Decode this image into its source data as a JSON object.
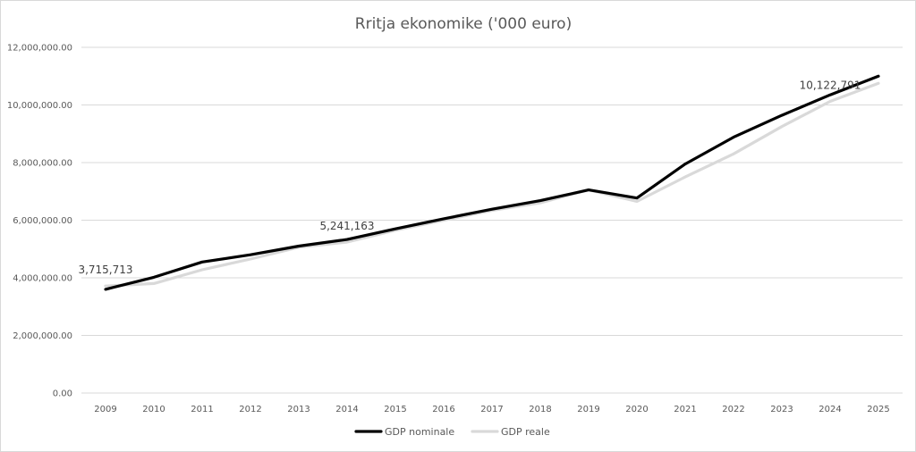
{
  "chart_data": {
    "type": "line",
    "title": "Rritja ekonomike ('000 euro)",
    "xlabel": "",
    "ylabel": "",
    "x": [
      "2009",
      "2010",
      "2011",
      "2012",
      "2013",
      "2014",
      "2015",
      "2016",
      "2017",
      "2018",
      "2019",
      "2020",
      "2021",
      "2022",
      "2023",
      "2024",
      "2025"
    ],
    "ylim": [
      0,
      12000000
    ],
    "yticks": [
      "0.00",
      "2,000,000.00",
      "4,000,000.00",
      "6,000,000.00",
      "8,000,000.00",
      "10,000,000.00",
      "12,000,000.00"
    ],
    "grid": true,
    "legend_position": "bottom",
    "series": [
      {
        "name": "GDP nominale",
        "color": "#000000",
        "values": [
          3600000,
          4020000,
          4550000,
          4800000,
          5100000,
          5330000,
          5700000,
          6050000,
          6380000,
          6680000,
          7050000,
          6770000,
          7950000,
          8880000,
          9640000,
          10350000,
          11000000
        ]
      },
      {
        "name": "GDP reale",
        "color": "#d9d9d9",
        "values": [
          3715713,
          3800000,
          4280000,
          4650000,
          5060000,
          5241163,
          5650000,
          6000000,
          6340000,
          6600000,
          7050000,
          6650000,
          7500000,
          8300000,
          9250000,
          10122791,
          10750000
        ]
      }
    ],
    "data_labels": [
      {
        "series": 1,
        "index": 0,
        "text": "3,715,713"
      },
      {
        "series": 1,
        "index": 5,
        "text": "5,241,163"
      },
      {
        "series": 1,
        "index": 15,
        "text": "10,122,791"
      }
    ]
  }
}
